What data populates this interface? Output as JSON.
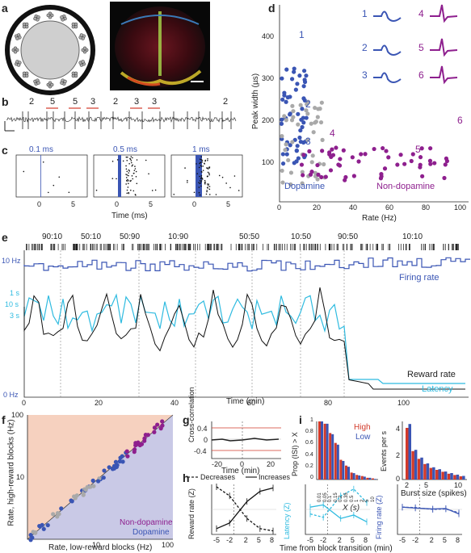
{
  "panels": {
    "a": "a",
    "b": "b",
    "c": "c",
    "d": "d",
    "e": "e",
    "f": "f",
    "g": "g",
    "h": "h",
    "i": "i"
  },
  "colors": {
    "dopamine": "#3a55b4",
    "non_dopamine": "#8e1f8e",
    "gray": "#a9a9a9",
    "latency": "#2fbbe0",
    "high": "#d23a2a",
    "low": "#3a55b4",
    "reward_bg": "#f6d1bf",
    "low_bg": "#c9c9e6"
  },
  "b": {
    "spike_labels": [
      "2",
      "5",
      "5",
      "3",
      "2",
      "3",
      "3",
      "2"
    ]
  },
  "c": {
    "windows": [
      "0.1 ms",
      "0.5 ms",
      "1 ms"
    ],
    "ticks": [
      "0",
      "5"
    ],
    "xlabel": "Time (ms)"
  },
  "d": {
    "ylabel": "Peak width (µs)",
    "xlabel": "Rate (Hz)",
    "yticks": [
      "400",
      "300",
      "200",
      "100"
    ],
    "xticks": [
      "0",
      "20",
      "40",
      "60",
      "80",
      "100"
    ],
    "legend_dopamine": "Dopamine",
    "legend_non_dopamine": "Non-dopamine",
    "waveform_numbers": [
      "1",
      "2",
      "3",
      "4",
      "5",
      "6"
    ],
    "point_labels": [
      "1",
      "2",
      "3",
      "4",
      "5",
      "6"
    ]
  },
  "e": {
    "blocks": [
      "90:10",
      "50:10",
      "50:90",
      "10:90",
      "50:50",
      "10:50",
      "90:50",
      "10:10"
    ],
    "y_labels": [
      "10 Hz",
      "1 s",
      "10 s",
      "3 s",
      "0 Hz"
    ],
    "xticks": [
      "0",
      "20",
      "40",
      "60",
      "80",
      "100"
    ],
    "xlabel": "Time (min)",
    "legend_firing": "Firing rate",
    "legend_reward": "Reward rate",
    "legend_latency": "Latency"
  },
  "f": {
    "ylabel": "Rate, high-reward blocks (Hz)",
    "xlabel": "Rate, low-reward blocks (Hz)",
    "ticks": [
      "100",
      "10"
    ],
    "xticks": [
      "10",
      "100"
    ],
    "legend_non_dopamine": "Non-dopamine",
    "legend_dopamine": "Dopamine"
  },
  "g": {
    "ylabel": "Cross-correlation",
    "yticks": [
      "0.4",
      "0",
      "-0.4"
    ],
    "xticks": [
      "-20",
      "0",
      "20"
    ],
    "xlabel": "Time (min)"
  },
  "i": {
    "left_ylabel": "Prop (ISI) > X",
    "left_xlabel": "X (s)",
    "left_yticks": [
      "1",
      "0.8",
      "0.6",
      "0.4",
      "0.2",
      "0"
    ],
    "left_xticks": [
      "0.01",
      "0.05",
      "0.1",
      "0.15",
      "0.2",
      "0.35",
      "0.5",
      "1",
      "2",
      "5",
      "10"
    ],
    "legend_high": "High",
    "legend_low": "Low",
    "right_ylabel": "Events per s",
    "right_yticks": [
      "4",
      "2",
      "0"
    ],
    "right_xticks": [
      "2",
      "5",
      "10"
    ],
    "right_xlabel": "Burst size (spikes)",
    "left_values_high": [
      1.0,
      0.96,
      0.8,
      0.63,
      0.34,
      0.24,
      0.12,
      0.08,
      0.06,
      0.03,
      0.02
    ],
    "left_values_low": [
      1.0,
      0.96,
      0.78,
      0.6,
      0.32,
      0.22,
      0.11,
      0.07,
      0.05,
      0.03,
      0.01
    ],
    "right_values_high": [
      4.0,
      2.2,
      1.6,
      1.2,
      0.9,
      0.75,
      0.6,
      0.45,
      0.35,
      0.25
    ],
    "right_values_low": [
      4.3,
      2.3,
      1.7,
      1.25,
      0.95,
      0.8,
      0.62,
      0.5,
      0.38,
      0.28
    ]
  },
  "h": {
    "legend_decreases": "Decreases",
    "legend_increases": "Increases",
    "ylabels": [
      "Reward rate (Z)",
      "Latency (Z)",
      "Firing rate (Z)"
    ],
    "xticks": [
      "-5",
      "-2",
      "2",
      "5",
      "8"
    ],
    "xlabel": "Time from block transition (min)",
    "x": [
      -5,
      -2,
      2,
      5,
      8
    ],
    "reward_decreases": [
      1.0,
      0.6,
      -0.4,
      -0.85,
      -0.95
    ],
    "reward_increases": [
      -0.85,
      -0.6,
      0.35,
      0.8,
      0.95
    ],
    "latency_decreases": [
      -0.2,
      -0.35,
      0.6,
      0.9,
      0.3
    ],
    "latency_increases": [
      0.1,
      0.2,
      -0.4,
      -0.25,
      -0.55
    ],
    "firing_decreases": [
      0.1,
      0.08,
      0.0,
      0.02,
      -0.15
    ],
    "firing_increases": [
      0.1,
      0.06,
      0.02,
      0.04,
      -0.2
    ]
  }
}
